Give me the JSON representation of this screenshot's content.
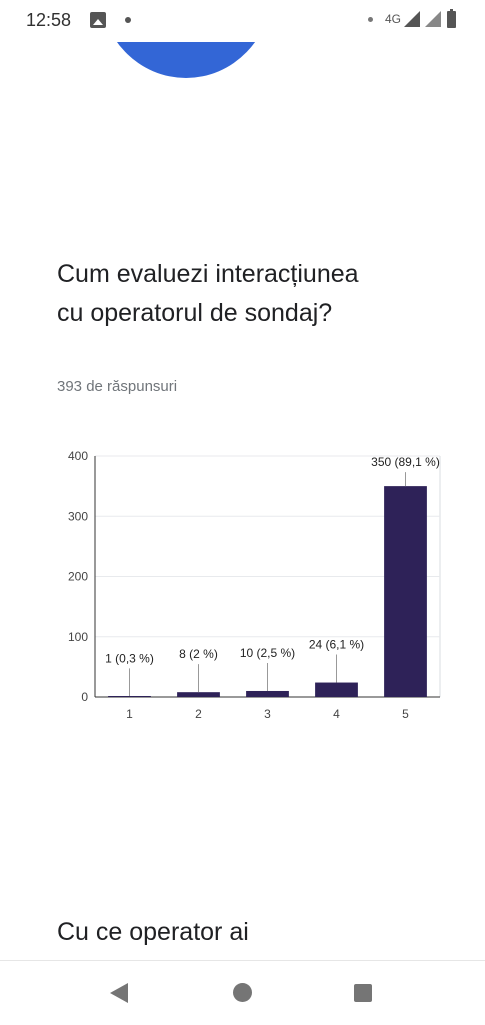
{
  "status_bar": {
    "time": "12:58",
    "network": "4G",
    "icons": [
      "image-icon",
      "notification-dot-icon",
      "signal-icon",
      "battery-icon"
    ]
  },
  "question": {
    "title": "Cum evaluezi interacțiunea cu operatorul de sondaj?",
    "responses": "393 de răspunsuri"
  },
  "chart_data": {
    "type": "bar",
    "categories": [
      "1",
      "2",
      "3",
      "4",
      "5"
    ],
    "values": [
      1,
      8,
      10,
      24,
      350
    ],
    "data_labels": [
      "1 (0,3 %)",
      "8 (2 %)",
      "10 (2,5 %)",
      "24 (6,1 %)",
      "350 (89,1 %)"
    ],
    "yticks": [
      "0",
      "100",
      "200",
      "300",
      "400"
    ],
    "ylim": [
      0,
      400
    ],
    "bar_color": "#2e2258",
    "grid": true
  },
  "next_question": {
    "title": "Cu ce operator ai"
  },
  "nav_bar": {
    "icons": [
      "back-icon",
      "home-icon",
      "recents-icon"
    ]
  }
}
